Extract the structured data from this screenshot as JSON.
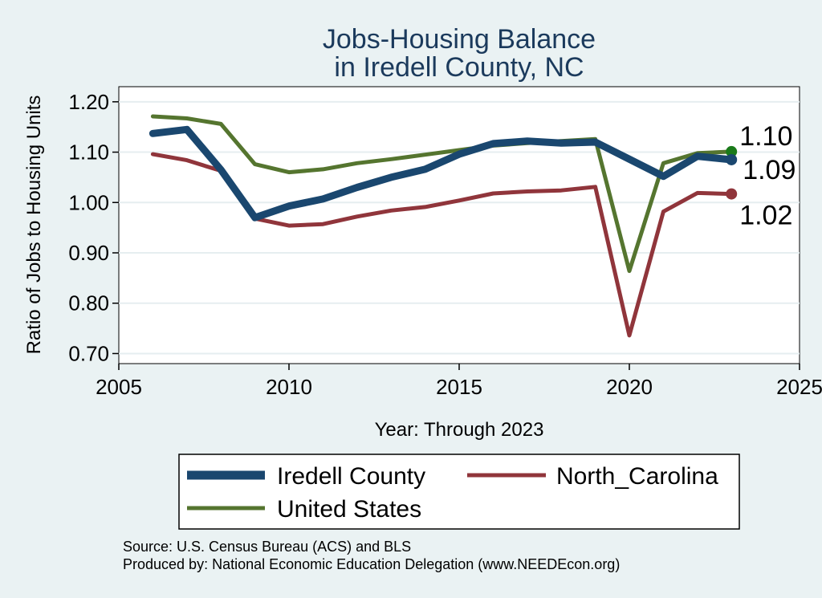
{
  "chart_data": {
    "type": "line",
    "title": [
      "Jobs-Housing Balance",
      "in Iredell County, NC"
    ],
    "xlabel": "Year: Through 2023",
    "ylabel": "Ratio of Jobs to Housing Units",
    "xlim": [
      2005,
      2025
    ],
    "ylim": [
      0.68,
      1.23
    ],
    "xticks": [
      2005,
      2010,
      2015,
      2020,
      2025
    ],
    "yticks": [
      0.7,
      0.8,
      0.9,
      1.0,
      1.1,
      1.2
    ],
    "ytick_labels": [
      "0.70",
      "0.80",
      "0.90",
      "1.00",
      "1.10",
      "1.20"
    ],
    "grid": true,
    "x": [
      2006,
      2007,
      2008,
      2009,
      2010,
      2011,
      2012,
      2013,
      2014,
      2015,
      2016,
      2017,
      2018,
      2019,
      2020,
      2021,
      2022,
      2023
    ],
    "series": [
      {
        "name": "Iredell County",
        "color": "#1a476f",
        "weight": "thick",
        "values": [
          1.137,
          1.145,
          1.065,
          0.97,
          0.993,
          1.007,
          1.03,
          1.05,
          1.066,
          1.096,
          1.117,
          1.122,
          1.118,
          1.12,
          1.086,
          1.052,
          1.092,
          1.085
        ],
        "end_label": "1.09"
      },
      {
        "name": "North_Carolina",
        "color": "#90353b",
        "weight": "medium",
        "values": [
          1.096,
          1.084,
          1.063,
          0.968,
          0.954,
          0.957,
          0.972,
          0.984,
          0.991,
          1.004,
          1.018,
          1.022,
          1.024,
          1.031,
          0.736,
          0.982,
          1.019,
          1.017
        ],
        "end_label": "1.02"
      },
      {
        "name": "United States",
        "color": "#55752f",
        "weight": "medium",
        "values": [
          1.171,
          1.167,
          1.156,
          1.076,
          1.06,
          1.066,
          1.078,
          1.086,
          1.095,
          1.104,
          1.113,
          1.118,
          1.122,
          1.126,
          0.864,
          1.078,
          1.098,
          1.101
        ],
        "end_label": "1.10",
        "end_marker_color": "#1a7a1a"
      }
    ],
    "legend": {
      "placement": "bottom",
      "entries": [
        "Iredell County",
        "North_Carolina",
        "United States"
      ]
    },
    "source_lines": [
      "Source: U.S. Census Bureau (ACS) and BLS",
      "Produced by: National Economic Education Delegation (www.NEEDEcon.org)"
    ]
  }
}
